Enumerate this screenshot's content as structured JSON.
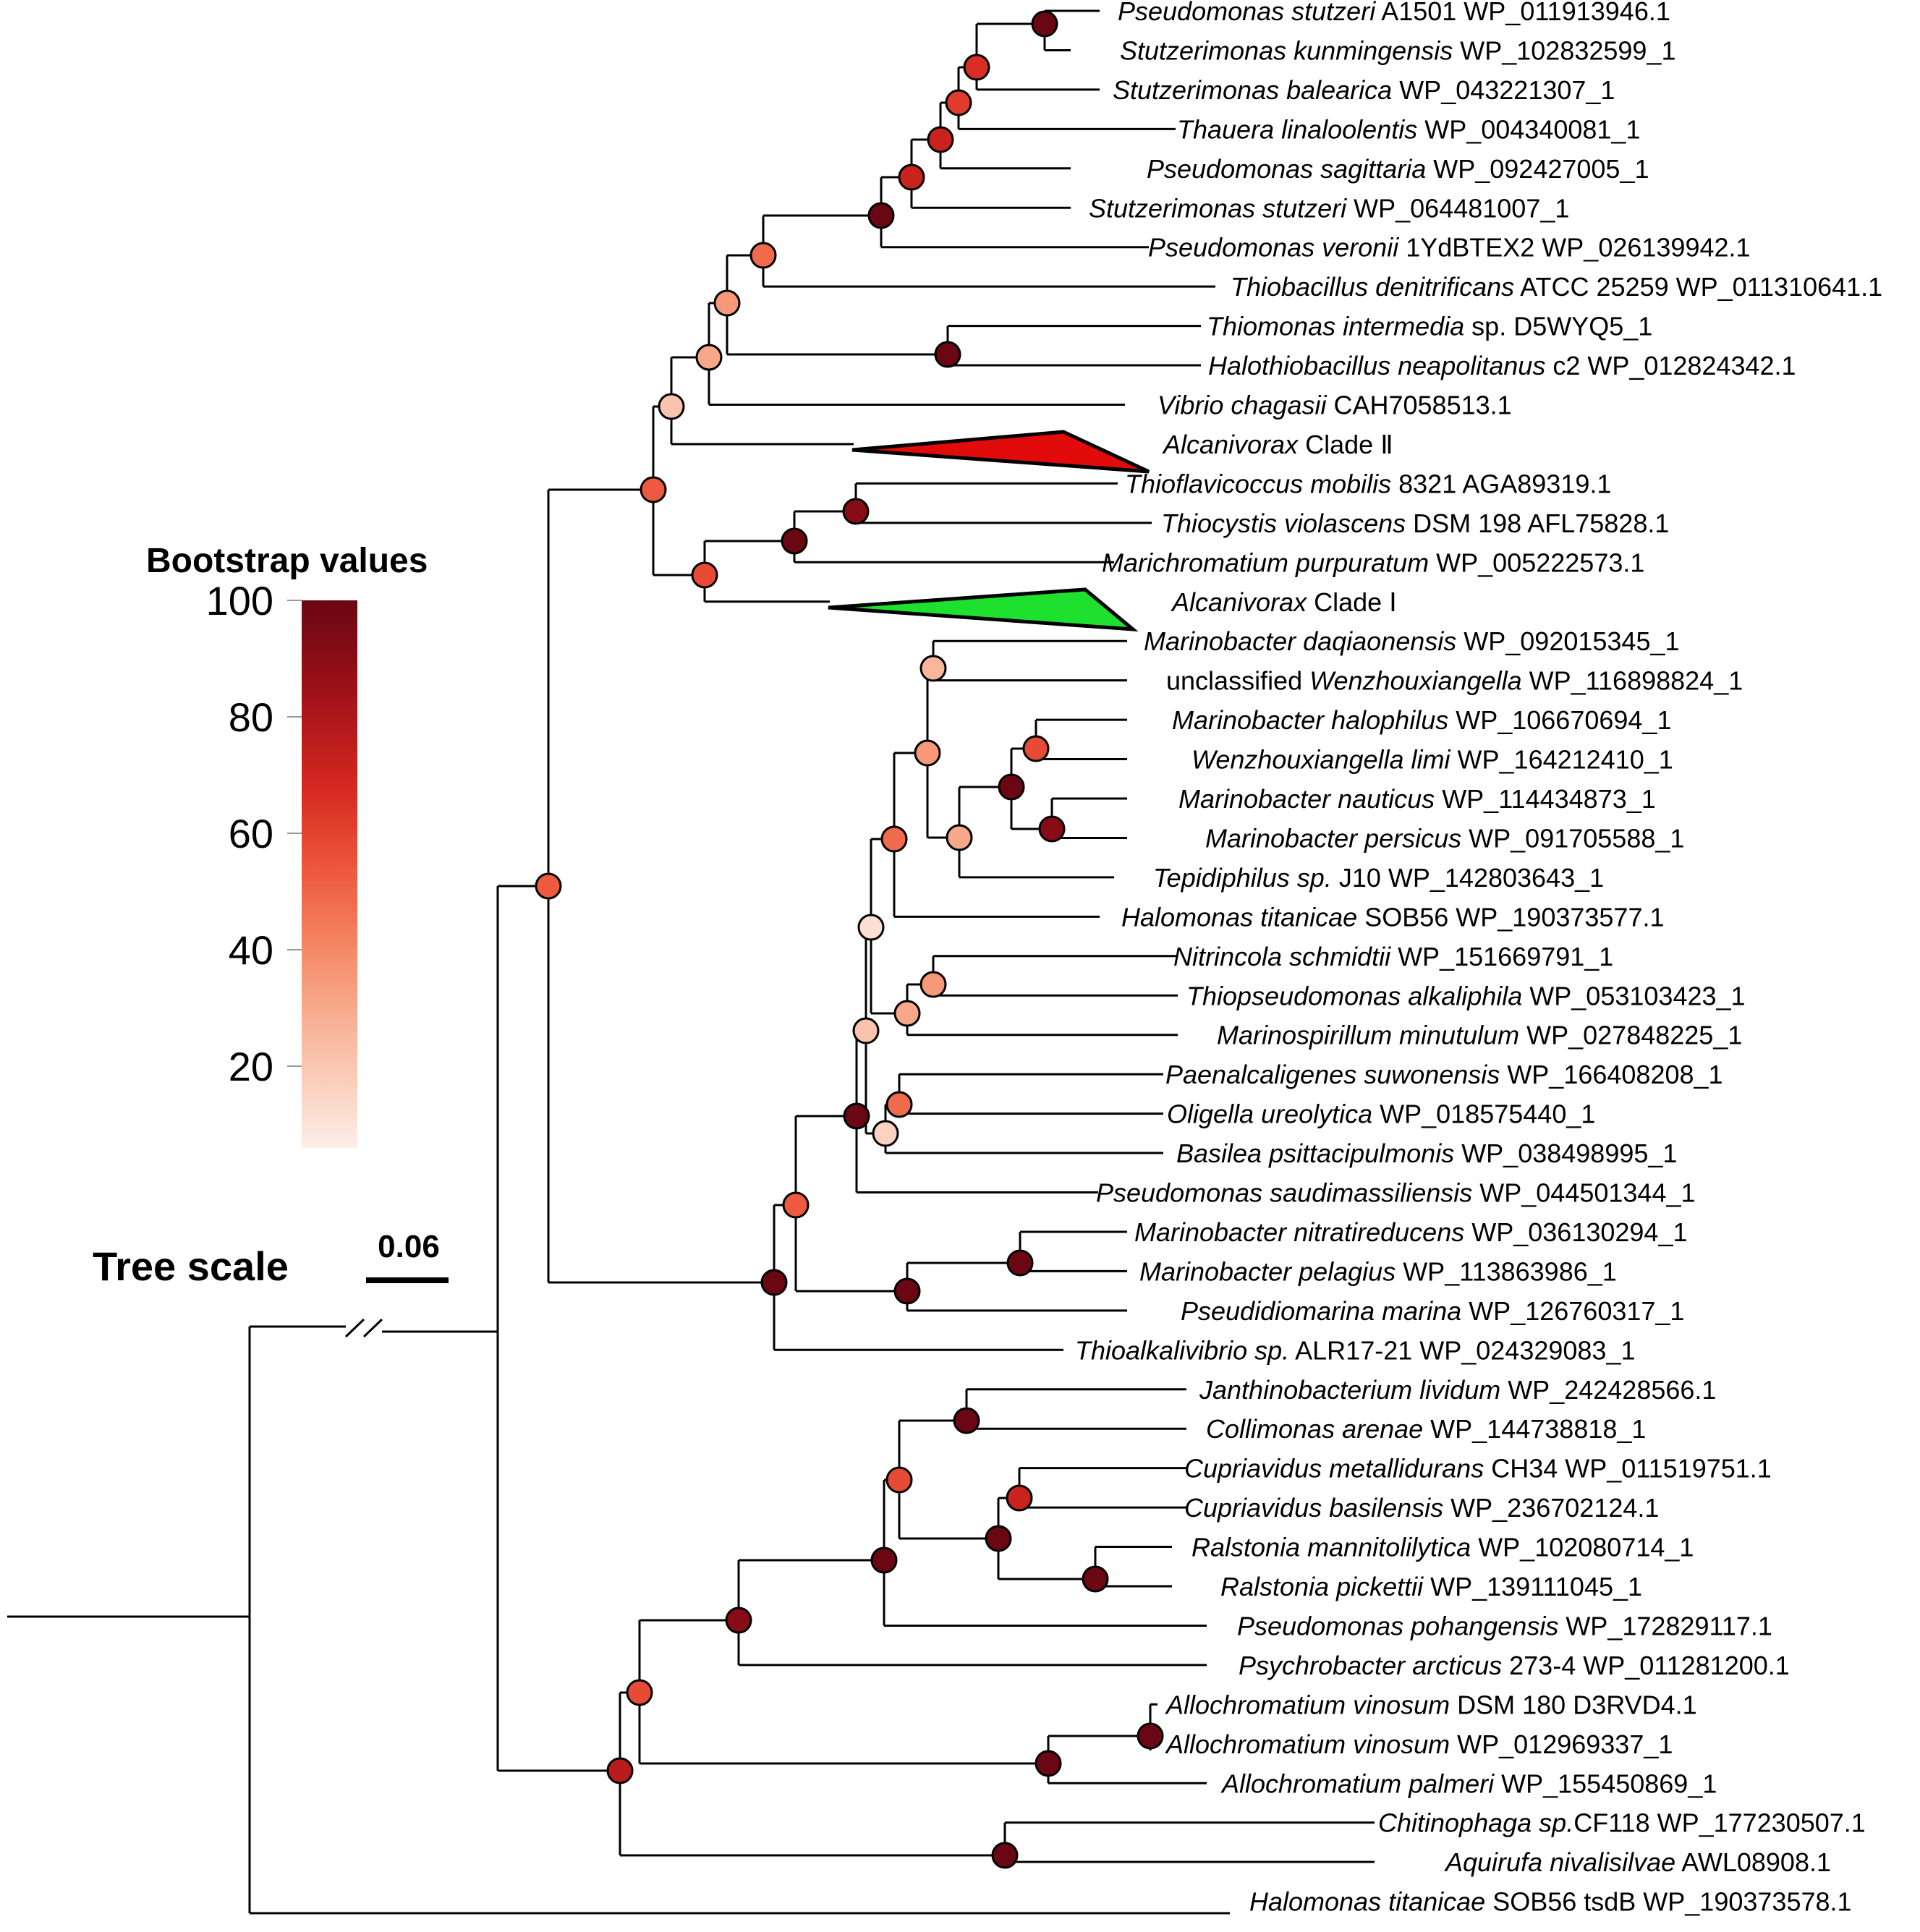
{
  "figure": {
    "legend_title": "Bootstrap values",
    "legend_ticks": [
      "100",
      "80",
      "60",
      "40",
      "20"
    ],
    "colorbar_stops": [
      "#6a0712",
      "#9c1018",
      "#d5281f",
      "#ee5a3f",
      "#f6906d",
      "#f9bfa6",
      "#fdeee8"
    ],
    "scale_title": "Tree scale",
    "scale_value": "0.06"
  },
  "colors": {
    "clade2_fill": "#e10b0b",
    "clade1_fill": "#1ee02e"
  },
  "leaves": [
    {
      "sp": "Pseudomonas stutzeri",
      "rest": " A1501 WP_011913946.1"
    },
    {
      "sp": "Stutzerimonas kunmingensis",
      "rest": " WP_102832599_1"
    },
    {
      "sp": "Stutzerimonas balearica",
      "rest": " WP_043221307_1"
    },
    {
      "sp": "Thauera linaloolentis",
      "rest": " WP_004340081_1"
    },
    {
      "sp": "Pseudomonas sagittaria",
      "rest": " WP_092427005_1"
    },
    {
      "sp": "Stutzerimonas stutzeri",
      "rest": " WP_064481007_1"
    },
    {
      "sp": "Pseudomonas veronii",
      "rest": " 1YdBTEX2 WP_026139942.1"
    },
    {
      "sp": "Thiobacillus denitrificans",
      "rest": " ATCC 25259 WP_011310641.1"
    },
    {
      "sp": "Thiomonas intermedia",
      "rest": " sp.  D5WYQ5_1"
    },
    {
      "sp": "Halothiobacillus neapolitanus",
      "rest": " c2 WP_012824342.1"
    },
    {
      "sp": "Vibrio chagasii",
      "rest": " CAH7058513.1"
    },
    {
      "sp": "Alcanivorax",
      "rest": " Clade Ⅱ"
    },
    {
      "sp": "Thioflavicoccus mobilis",
      "rest": " 8321 AGA89319.1"
    },
    {
      "sp": "Thiocystis violascens",
      "rest": " DSM 198 AFL75828.1"
    },
    {
      "sp": "Marichromatium purpuratum",
      "rest": " WP_005222573.1"
    },
    {
      "sp": "Alcanivorax",
      "rest": " Clade Ⅰ"
    },
    {
      "sp": "Marinobacter daqiaonensis",
      "rest": " WP_092015345_1"
    },
    {
      "pre": "unclassified ",
      "sp": "Wenzhouxiangella",
      "rest": " WP_116898824_1"
    },
    {
      "sp": "Marinobacter halophilus",
      "rest": " WP_106670694_1"
    },
    {
      "sp": "Wenzhouxiangella limi",
      "rest": " WP_164212410_1"
    },
    {
      "sp": "Marinobacter nauticus",
      "rest": " WP_114434873_1"
    },
    {
      "sp": "Marinobacter persicus",
      "rest": " WP_091705588_1"
    },
    {
      "sp": "Tepidiphilus sp.",
      "rest": " J10 WP_142803643_1"
    },
    {
      "sp": "Halomonas titanicae",
      "rest": " SOB56 WP_190373577.1"
    },
    {
      "sp": "Nitrincola schmidtii",
      "rest": " WP_151669791_1"
    },
    {
      "sp": "Thiopseudomonas alkaliphila",
      "rest": " WP_053103423_1"
    },
    {
      "sp": "Marinospirillum minutulum",
      "rest": " WP_027848225_1"
    },
    {
      "sp": "Paenalcaligenes suwonensis",
      "rest": " WP_166408208_1"
    },
    {
      "sp": "Oligella ureolytica",
      "rest": " WP_018575440_1"
    },
    {
      "sp": "Basilea psittacipulmonis",
      "rest": " WP_038498995_1"
    },
    {
      "sp": "Pseudomonas saudimassiliensis",
      "rest": "  WP_044501344_1"
    },
    {
      "sp": "Marinobacter nitratireducens",
      "rest": " WP_036130294_1"
    },
    {
      "sp": "Marinobacter pelagius",
      "rest": " WP_113863986_1"
    },
    {
      "sp": "Pseudidiomarina marina",
      "rest": " WP_126760317_1"
    },
    {
      "sp": "Thioalkalivibrio sp.",
      "rest": " ALR17-21 WP_024329083_1"
    },
    {
      "sp": "Janthinobacterium lividum",
      "rest": " WP_242428566.1"
    },
    {
      "sp": "Collimonas arenae",
      "rest": " WP_144738818_1"
    },
    {
      "sp": "Cupriavidus metallidurans",
      "rest": " CH34  WP_011519751.1"
    },
    {
      "sp": "Cupriavidus basilensis",
      "rest": "  WP_236702124.1"
    },
    {
      "sp": "Ralstonia mannitolilytica",
      "rest": " WP_102080714_1"
    },
    {
      "sp": "Ralstonia pickettii",
      "rest": " WP_139111045_1"
    },
    {
      "sp": "Pseudomonas pohangensis",
      "rest": " WP_172829117.1"
    },
    {
      "sp": "Psychrobacter arcticus",
      "rest": " 273-4 WP_011281200.1"
    },
    {
      "sp": "Allochromatium vinosum",
      "rest": " DSM 180 D3RVD4.1"
    },
    {
      "sp": "Allochromatium  vinosum",
      "rest": " WP_012969337_1"
    },
    {
      "sp": "Allochromatium palmeri",
      "rest": " WP_155450869_1"
    },
    {
      "sp": "Chitinophaga sp.",
      "rest": "CF118 WP_177230507.1"
    },
    {
      "sp": "Aquirufa nivalisilvae",
      "rest": " AWL08908.1"
    },
    {
      "sp": "Halomonas titanicae",
      "rest": " SOB56 tsdB WP_190373578.1"
    }
  ],
  "bootstrap_nodes": [
    {
      "id": "ps-sk",
      "support": 100
    },
    {
      "id": "sb-grp",
      "support": 65
    },
    {
      "id": "tl-grp",
      "support": 60
    },
    {
      "id": "psa-grp",
      "support": 70
    },
    {
      "id": "pst-grp",
      "support": 70
    },
    {
      "id": "pv-grp",
      "support": 100
    },
    {
      "id": "td-grp",
      "support": 45
    },
    {
      "id": "tm-hn",
      "support": 100
    },
    {
      "id": "ti-grp",
      "support": 30
    },
    {
      "id": "vc-grp",
      "support": 25
    },
    {
      "id": "c2-grp",
      "support": 15
    },
    {
      "id": "tfm-tv",
      "support": 90
    },
    {
      "id": "mp-grp",
      "support": 100
    },
    {
      "id": "c1-grp",
      "support": 55
    },
    {
      "id": "upper",
      "support": 50
    },
    {
      "id": "md-wz",
      "support": 20
    },
    {
      "id": "mh-wl",
      "support": 55
    },
    {
      "id": "mn-mpe",
      "support": 90
    },
    {
      "id": "mh-mn",
      "support": 100
    },
    {
      "id": "tep-grp",
      "support": 25
    },
    {
      "id": "md-mh",
      "support": 30
    },
    {
      "id": "ht-grp",
      "support": 45
    },
    {
      "id": "ns-ta",
      "support": 30
    },
    {
      "id": "mm-grp",
      "support": 25
    },
    {
      "id": "hal-nit",
      "support": 5
    },
    {
      "id": "ps-ou",
      "support": 45
    },
    {
      "id": "bp-grp",
      "support": 10
    },
    {
      "id": "nit-pae",
      "support": 15
    },
    {
      "id": "psm-grp",
      "support": 100
    },
    {
      "id": "mni-mpl",
      "support": 100
    },
    {
      "id": "pmar-grp",
      "support": 100
    },
    {
      "id": "mar-grp",
      "support": 50
    },
    {
      "id": "tha-grp",
      "support": 100
    },
    {
      "id": "jl-ca",
      "support": 100
    },
    {
      "id": "cm-cb",
      "support": 70
    },
    {
      "id": "rm-rp",
      "support": 100
    },
    {
      "id": "cup-ral",
      "support": 100
    },
    {
      "id": "jan-cup",
      "support": 55
    },
    {
      "id": "pp-grp",
      "support": 100
    },
    {
      "id": "pa-grp",
      "support": 90
    },
    {
      "id": "av-av",
      "support": 100
    },
    {
      "id": "apal-grp",
      "support": 100
    },
    {
      "id": "allo-grp",
      "support": 55
    },
    {
      "id": "ch-aq",
      "support": 100
    },
    {
      "id": "lower",
      "support": 75
    },
    {
      "id": "big",
      "support": 50
    }
  ]
}
